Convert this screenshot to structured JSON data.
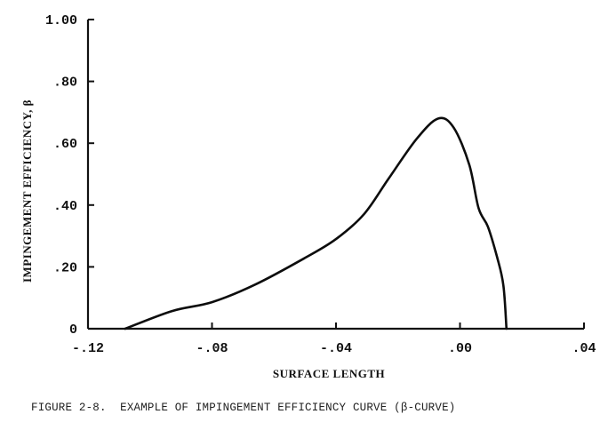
{
  "chart_data": {
    "type": "line",
    "title": "",
    "xlabel": "SURFACE LENGTH",
    "ylabel": "IMPINGEMENT EFFICIENCY, β",
    "xlim": [
      -0.12,
      0.04
    ],
    "ylim": [
      0,
      1.0
    ],
    "x_ticks": [
      -0.12,
      -0.08,
      -0.04,
      0.0,
      0.04
    ],
    "x_tick_labels": [
      "-.12",
      "-.08",
      "-.04",
      ".00",
      ".04"
    ],
    "y_ticks": [
      0,
      0.2,
      0.4,
      0.6,
      0.8,
      1.0
    ],
    "y_tick_labels": [
      "0",
      ".20",
      ".40",
      ".60",
      ".80",
      "1.00"
    ],
    "grid": false,
    "legend": null,
    "series": [
      {
        "name": "β-curve",
        "color": "#0d0d0d",
        "x": [
          -0.108,
          -0.093,
          -0.08,
          -0.066,
          -0.05,
          -0.04,
          -0.031,
          -0.023,
          -0.014,
          -0.007,
          -0.002,
          0.003,
          0.006,
          0.009,
          0.012,
          0.014,
          0.015
        ],
        "y": [
          0.0,
          0.057,
          0.086,
          0.143,
          0.229,
          0.29,
          0.37,
          0.486,
          0.614,
          0.68,
          0.65,
          0.53,
          0.39,
          0.33,
          0.23,
          0.14,
          0.0
        ]
      }
    ],
    "annotations": [],
    "peak": {
      "x": -0.007,
      "y": 0.68
    }
  },
  "figure": {
    "caption": "FIGURE 2-8.  EXAMPLE OF IMPINGEMENT EFFICIENCY CURVE (β-CURVE)"
  }
}
